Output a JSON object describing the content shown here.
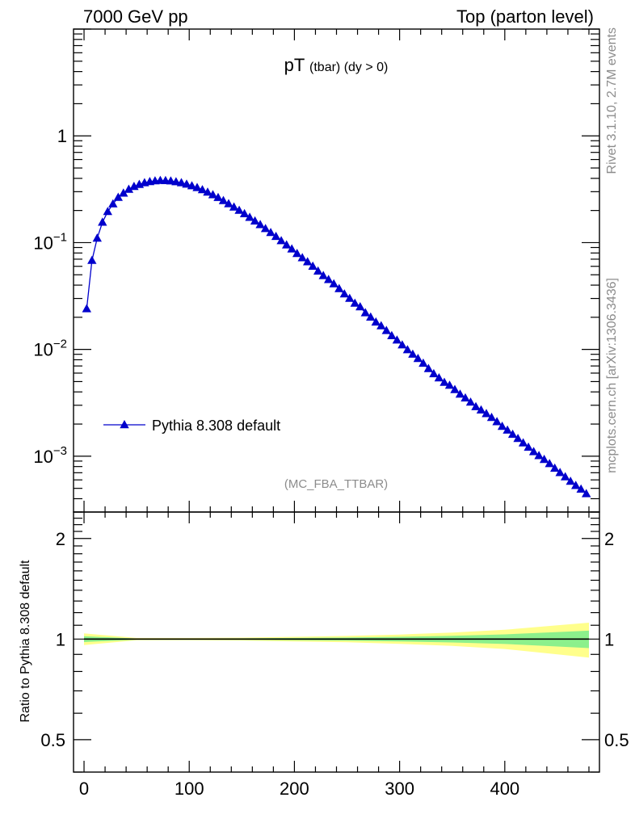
{
  "header": {
    "left": "7000 GeV pp",
    "right": "Top (parton level)"
  },
  "side_label_top": "Rivet 3.1.10,  2.7M events",
  "side_label_bottom": "mcplots.cern.ch [arXiv:1306.3436]",
  "colors": {
    "series": "#0000cc",
    "band_outer": "#ffff8c",
    "band_inner": "#8cf08c",
    "axis": "#000000",
    "watermark": "#8c8c8c"
  },
  "chart_data": [
    {
      "type": "line",
      "title_main": "pT",
      "title_sub": "(tbar) (dy > 0)",
      "watermark": "(MC_FBA_TTBAR)",
      "yscale": "log",
      "xlim": [
        -10,
        490
      ],
      "ylim": [
        0.0003,
        10
      ],
      "ytick_labels": [
        {
          "value": 1,
          "label": "1"
        },
        {
          "value": 0.1,
          "base": "10",
          "exp": "−1"
        },
        {
          "value": 0.01,
          "base": "10",
          "exp": "−2"
        },
        {
          "value": 0.001,
          "base": "10",
          "exp": "−3"
        }
      ],
      "legend": {
        "position": "lower-left",
        "marker": "triangle-up"
      },
      "series": [
        {
          "name": "Pythia 8.308 default",
          "x": [
            2.5,
            7.5,
            12.5,
            17.5,
            22.5,
            27.5,
            32.5,
            37.5,
            42.5,
            47.5,
            52.5,
            57.5,
            62.5,
            67.5,
            72.5,
            77.5,
            82.5,
            87.5,
            92.5,
            97.5,
            102.5,
            107.5,
            112.5,
            117.5,
            122.5,
            127.5,
            132.5,
            137.5,
            142.5,
            147.5,
            152.5,
            157.5,
            162.5,
            167.5,
            172.5,
            177.5,
            182.5,
            187.5,
            192.5,
            197.5,
            202.5,
            207.5,
            212.5,
            217.5,
            222.5,
            227.5,
            232.5,
            237.5,
            242.5,
            247.5,
            252.5,
            257.5,
            262.5,
            267.5,
            272.5,
            277.5,
            282.5,
            287.5,
            292.5,
            297.5,
            302.5,
            307.5,
            312.5,
            317.5,
            322.5,
            327.5,
            332.5,
            337.5,
            342.5,
            347.5,
            352.5,
            357.5,
            362.5,
            367.5,
            372.5,
            377.5,
            382.5,
            387.5,
            392.5,
            397.5,
            402.5,
            407.5,
            412.5,
            417.5,
            422.5,
            427.5,
            432.5,
            437.5,
            442.5,
            447.5,
            452.5,
            457.5,
            462.5,
            467.5,
            472.5,
            477.5
          ],
          "y": [
            0.024,
            0.068,
            0.11,
            0.155,
            0.195,
            0.23,
            0.265,
            0.29,
            0.315,
            0.335,
            0.35,
            0.363,
            0.372,
            0.378,
            0.381,
            0.38,
            0.377,
            0.371,
            0.363,
            0.352,
            0.34,
            0.327,
            0.312,
            0.296,
            0.28,
            0.264,
            0.247,
            0.231,
            0.215,
            0.2,
            0.186,
            0.172,
            0.159,
            0.147,
            0.135,
            0.124,
            0.114,
            0.104,
            0.095,
            0.087,
            0.079,
            0.072,
            0.066,
            0.06,
            0.054,
            0.049,
            0.045,
            0.041,
            0.037,
            0.033,
            0.03,
            0.027,
            0.025,
            0.022,
            0.02,
            0.018,
            0.0166,
            0.015,
            0.0134,
            0.0122,
            0.011,
            0.0099,
            0.009,
            0.0082,
            0.0074,
            0.0066,
            0.0059,
            0.0054,
            0.0049,
            0.0046,
            0.0042,
            0.0038,
            0.0035,
            0.0032,
            0.0029,
            0.0027,
            0.0025,
            0.0023,
            0.0021,
            0.0019,
            0.00175,
            0.0016,
            0.00146,
            0.00133,
            0.00121,
            0.0011,
            0.00101,
            0.00093,
            0.00085,
            0.00077,
            0.0007,
            0.00064,
            0.00058,
            0.00053,
            0.00049,
            0.000445
          ]
        }
      ]
    },
    {
      "type": "area",
      "ylabel": "Ratio to Pythia 8.308 default",
      "yscale": "log",
      "xlim": [
        -10,
        490
      ],
      "ylim": [
        0.4,
        2.4
      ],
      "ytick_labels": [
        {
          "value": 2,
          "label": "2"
        },
        {
          "value": 1,
          "label": "1"
        },
        {
          "value": 0.5,
          "label": "0.5"
        }
      ],
      "xtick_labels": [
        {
          "value": 0,
          "label": "0"
        },
        {
          "value": 100,
          "label": "100"
        },
        {
          "value": 200,
          "label": "200"
        },
        {
          "value": 300,
          "label": "300"
        },
        {
          "value": 400,
          "label": "400"
        }
      ],
      "x": [
        0,
        50,
        100,
        150,
        200,
        250,
        300,
        350,
        400,
        450,
        480
      ],
      "reference": 1.0,
      "band_inner_halfwidth": [
        0.02,
        0.004,
        0.004,
        0.005,
        0.008,
        0.011,
        0.016,
        0.023,
        0.033,
        0.05,
        0.06
      ],
      "band_outer_halfwidth": [
        0.04,
        0.008,
        0.008,
        0.01,
        0.016,
        0.022,
        0.032,
        0.046,
        0.066,
        0.1,
        0.12
      ]
    }
  ]
}
